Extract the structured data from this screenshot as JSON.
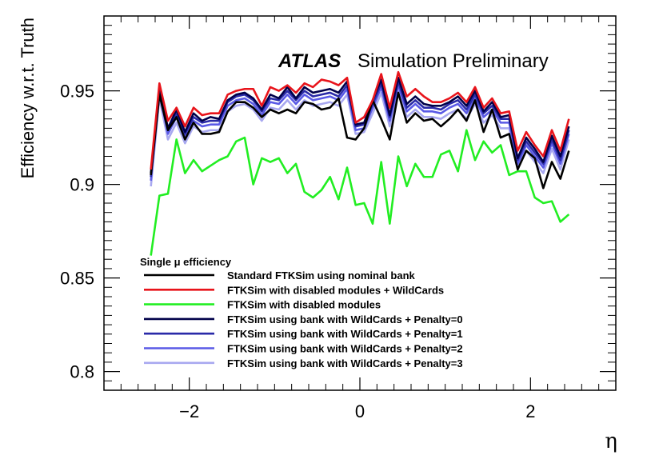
{
  "chart_data": {
    "type": "line",
    "label_text": {
      "atlas": "ATLAS",
      "subtitle": "Simulation Preliminary"
    },
    "xlabel": "η",
    "ylabel": "Efficiency w.r.t. Truth",
    "xlim": [
      -3,
      3
    ],
    "ylim": [
      0.79,
      0.99
    ],
    "xticks": [
      -2,
      0,
      2
    ],
    "xtick_labels": [
      "−2",
      "0",
      "2"
    ],
    "yticks": [
      0.8,
      0.85,
      0.9,
      0.95
    ],
    "ytick_labels": [
      "0.8",
      "0.85",
      "0.9",
      "0.95"
    ],
    "legend_title": "Single μ efficiency",
    "legend_position": "lower-left",
    "x": [
      -2.45,
      -2.35,
      -2.25,
      -2.15,
      -2.05,
      -1.95,
      -1.85,
      -1.75,
      -1.65,
      -1.55,
      -1.45,
      -1.35,
      -1.25,
      -1.15,
      -1.05,
      -0.95,
      -0.85,
      -0.75,
      -0.65,
      -0.55,
      -0.45,
      -0.35,
      -0.25,
      -0.15,
      -0.05,
      0.05,
      0.15,
      0.25,
      0.35,
      0.45,
      0.55,
      0.65,
      0.75,
      0.85,
      0.95,
      1.05,
      1.15,
      1.25,
      1.35,
      1.45,
      1.55,
      1.65,
      1.75,
      1.85,
      1.95,
      2.05,
      2.15,
      2.25,
      2.35,
      2.45
    ],
    "series": [
      {
        "name": "Standard FTKSim using nominal bank",
        "color": "#000000",
        "values": [
          0.905,
          0.948,
          0.929,
          0.936,
          0.924,
          0.933,
          0.927,
          0.927,
          0.928,
          0.939,
          0.944,
          0.944,
          0.941,
          0.936,
          0.94,
          0.938,
          0.94,
          0.938,
          0.944,
          0.943,
          0.94,
          0.941,
          0.946,
          0.925,
          0.924,
          0.93,
          0.945,
          0.935,
          0.924,
          0.949,
          0.933,
          0.938,
          0.934,
          0.935,
          0.931,
          0.935,
          0.94,
          0.934,
          0.945,
          0.928,
          0.94,
          0.925,
          0.927,
          0.908,
          0.918,
          0.914,
          0.898,
          0.912,
          0.903,
          0.918
        ]
      },
      {
        "name": "FTKSim with disabled modules + WildCards",
        "color": "#e8141b",
        "values": [
          0.908,
          0.954,
          0.934,
          0.941,
          0.931,
          0.941,
          0.937,
          0.938,
          0.938,
          0.948,
          0.95,
          0.951,
          0.951,
          0.942,
          0.952,
          0.95,
          0.953,
          0.949,
          0.954,
          0.952,
          0.956,
          0.955,
          0.953,
          0.957,
          0.933,
          0.936,
          0.945,
          0.959,
          0.941,
          0.96,
          0.947,
          0.951,
          0.947,
          0.944,
          0.944,
          0.946,
          0.949,
          0.944,
          0.952,
          0.941,
          0.946,
          0.938,
          0.939,
          0.918,
          0.928,
          0.921,
          0.915,
          0.929,
          0.918,
          0.935
        ]
      },
      {
        "name": "FTKSim with disabled modules",
        "color": "#22ee22",
        "values": [
          0.862,
          0.894,
          0.895,
          0.924,
          0.906,
          0.913,
          0.907,
          0.91,
          0.913,
          0.915,
          0.923,
          0.925,
          0.9,
          0.914,
          0.912,
          0.914,
          0.906,
          0.911,
          0.896,
          0.893,
          0.897,
          0.904,
          0.892,
          0.909,
          0.889,
          0.89,
          0.879,
          0.912,
          0.879,
          0.915,
          0.899,
          0.911,
          0.904,
          0.904,
          0.916,
          0.918,
          0.907,
          0.929,
          0.913,
          0.923,
          0.917,
          0.921,
          0.905,
          0.907,
          0.907,
          0.893,
          0.89,
          0.891,
          0.88,
          0.884
        ]
      },
      {
        "name": "FTKSim using bank with WildCards + Penalty=0",
        "color": "#00004a",
        "values": [
          0.906,
          0.952,
          0.93,
          0.94,
          0.928,
          0.938,
          0.934,
          0.936,
          0.935,
          0.945,
          0.948,
          0.949,
          0.946,
          0.94,
          0.948,
          0.946,
          0.952,
          0.946,
          0.952,
          0.949,
          0.95,
          0.951,
          0.949,
          0.955,
          0.932,
          0.933,
          0.945,
          0.956,
          0.937,
          0.957,
          0.943,
          0.947,
          0.943,
          0.942,
          0.942,
          0.944,
          0.947,
          0.942,
          0.95,
          0.939,
          0.944,
          0.936,
          0.937,
          0.914,
          0.925,
          0.919,
          0.912,
          0.926,
          0.915,
          0.931
        ]
      },
      {
        "name": "FTKSim using bank with WildCards + Penalty=1",
        "color": "#2a2aa8",
        "values": [
          0.904,
          0.951,
          0.929,
          0.938,
          0.927,
          0.936,
          0.933,
          0.934,
          0.934,
          0.944,
          0.947,
          0.948,
          0.945,
          0.939,
          0.946,
          0.945,
          0.95,
          0.945,
          0.95,
          0.947,
          0.948,
          0.949,
          0.947,
          0.953,
          0.931,
          0.932,
          0.943,
          0.954,
          0.936,
          0.955,
          0.941,
          0.945,
          0.941,
          0.941,
          0.94,
          0.943,
          0.945,
          0.94,
          0.948,
          0.938,
          0.942,
          0.935,
          0.935,
          0.913,
          0.923,
          0.917,
          0.911,
          0.924,
          0.913,
          0.929
        ]
      },
      {
        "name": "FTKSim using bank with WildCards + Penalty=2",
        "color": "#5a5ae6",
        "values": [
          0.902,
          0.949,
          0.927,
          0.936,
          0.925,
          0.934,
          0.931,
          0.932,
          0.932,
          0.942,
          0.945,
          0.946,
          0.943,
          0.937,
          0.944,
          0.943,
          0.948,
          0.943,
          0.948,
          0.945,
          0.946,
          0.947,
          0.945,
          0.951,
          0.929,
          0.93,
          0.941,
          0.952,
          0.934,
          0.953,
          0.939,
          0.943,
          0.939,
          0.939,
          0.938,
          0.941,
          0.943,
          0.938,
          0.946,
          0.936,
          0.94,
          0.933,
          0.933,
          0.911,
          0.921,
          0.915,
          0.909,
          0.922,
          0.911,
          0.927
        ]
      },
      {
        "name": "FTKSim using bank with WildCards + Penalty=3",
        "color": "#a8a8f0",
        "values": [
          0.899,
          0.946,
          0.924,
          0.933,
          0.922,
          0.931,
          0.928,
          0.929,
          0.929,
          0.939,
          0.942,
          0.943,
          0.94,
          0.934,
          0.941,
          0.94,
          0.945,
          0.94,
          0.945,
          0.942,
          0.943,
          0.944,
          0.942,
          0.948,
          0.927,
          0.928,
          0.938,
          0.949,
          0.931,
          0.95,
          0.936,
          0.94,
          0.936,
          0.936,
          0.935,
          0.938,
          0.94,
          0.935,
          0.943,
          0.933,
          0.937,
          0.93,
          0.93,
          0.909,
          0.918,
          0.912,
          0.906,
          0.919,
          0.908,
          0.924
        ]
      }
    ]
  }
}
